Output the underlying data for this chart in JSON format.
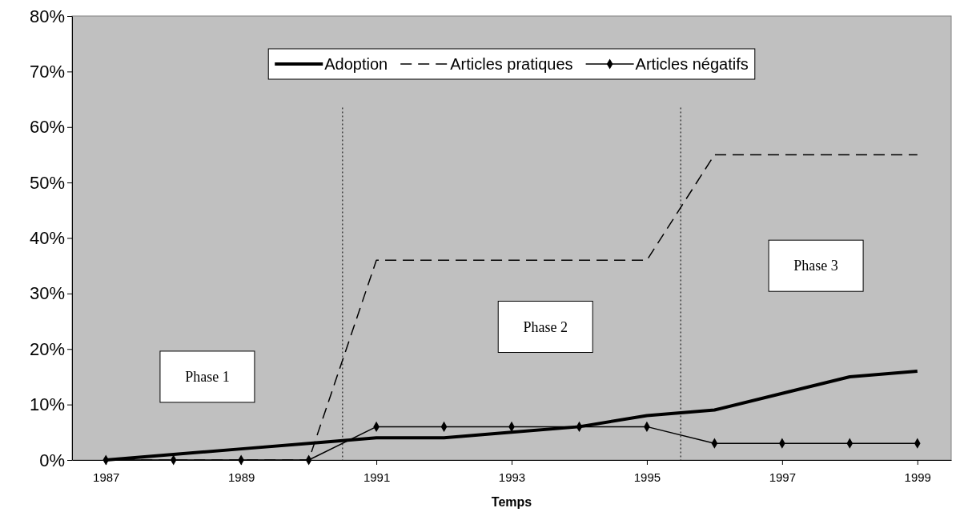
{
  "chart_data": {
    "type": "line",
    "xlabel": "Temps",
    "x": [
      1987,
      1988,
      1989,
      1990,
      1991,
      1992,
      1993,
      1994,
      1995,
      1996,
      1997,
      1998,
      1999
    ],
    "xlim": [
      1986.5,
      1999.5
    ],
    "xticks": [
      1987,
      1989,
      1991,
      1993,
      1995,
      1997,
      1999
    ],
    "ylim": [
      0,
      0.8
    ],
    "yticks": [
      {
        "value": 0,
        "label": "0%"
      },
      {
        "value": 0.1,
        "label": "10%"
      },
      {
        "value": 0.2,
        "label": "20%"
      },
      {
        "value": 0.3,
        "label": "30%"
      },
      {
        "value": 0.4,
        "label": "40%"
      },
      {
        "value": 0.5,
        "label": "50%"
      },
      {
        "value": 0.6,
        "label": "60%"
      },
      {
        "value": 0.7,
        "label": "70%"
      },
      {
        "value": 0.8,
        "label": "80%"
      }
    ],
    "series": [
      {
        "name": "Adoption",
        "color": "#000000",
        "line_style": "solid",
        "marker": "none",
        "values": [
          0,
          0.01,
          0.02,
          0.03,
          0.04,
          0.04,
          0.05,
          0.06,
          0.08,
          0.09,
          0.12,
          0.15,
          0.16
        ]
      },
      {
        "name": "Articles pratiques",
        "color": "#000000",
        "line_style": "dashed",
        "marker": "none",
        "values": [
          0,
          0,
          0,
          0,
          0.36,
          0.36,
          0.36,
          0.36,
          0.36,
          0.55,
          0.55,
          0.55,
          0.55
        ]
      },
      {
        "name": "Articles négatifs",
        "color": "#000000",
        "line_style": "solid",
        "marker": "diamond",
        "values": [
          0,
          0,
          0,
          0,
          0.06,
          0.06,
          0.06,
          0.06,
          0.06,
          0.03,
          0.03,
          0.03,
          0.03
        ]
      }
    ],
    "ref_lines": [
      {
        "axis": "x",
        "value": 1990.5,
        "color": "#000000",
        "line_style": "dotted"
      },
      {
        "axis": "x",
        "value": 1995.5,
        "color": "#000000",
        "line_style": "dotted"
      }
    ],
    "annotations": [
      "Phase 1",
      "Phase 2",
      "Phase 3"
    ],
    "grid": false,
    "legend": "top"
  }
}
